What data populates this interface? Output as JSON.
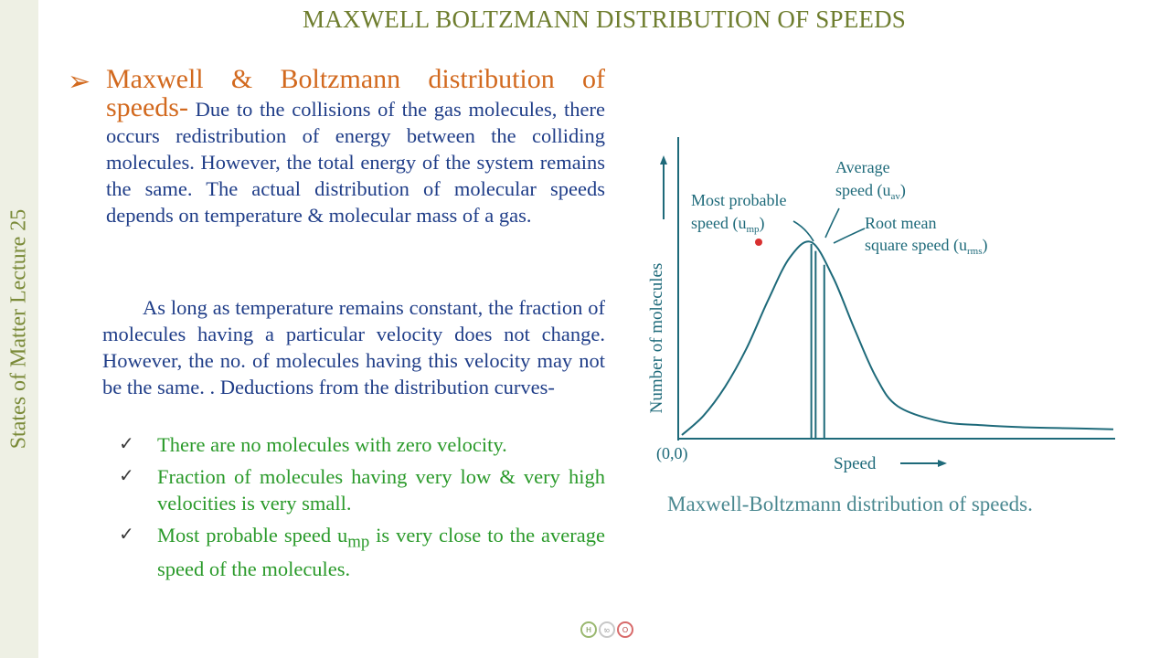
{
  "sidebar": {
    "label": "States of Matter Lecture 25"
  },
  "header": {
    "title": "MAXWELL BOLTZMANN DISTRIBUTION OF SPEEDS"
  },
  "content": {
    "bullet_symbol": "➢",
    "heading": "Maxwell & Boltzmann distribution of speeds-",
    "para1_text": " Due to the collisions of the gas molecules, there occurs redistribution of energy between the colliding molecules. However, the total energy of the system remains the same. The actual distribution of molecular speeds depends on temperature & molecular mass of a gas.",
    "para2_text": "As long as temperature remains constant, the fraction of molecules having a particular velocity does not change. However, the no. of molecules having this velocity may not be the same. . Deductions from the distribution curves-",
    "check_symbol": "✓",
    "deductions": [
      {
        "text": "There are no molecules with zero velocity."
      },
      {
        "text": "Fraction of molecules having very low & very high velocities is very small."
      },
      {
        "text_before": "Most probable speed u",
        "subscript": "mp",
        "text_after": " is very close to the average speed of the molecules."
      }
    ]
  },
  "chart_data": {
    "type": "line",
    "title": "",
    "xlabel": "Speed",
    "ylabel": "Number of molecules",
    "origin_label": "(0,0)",
    "series": [
      {
        "name": "distribution curve",
        "x": [
          0,
          0.05,
          0.1,
          0.15,
          0.2,
          0.25,
          0.3,
          0.35,
          0.4,
          0.45,
          0.5,
          0.6,
          0.7,
          0.8,
          0.9,
          1.0
        ],
        "y": [
          0,
          0.1,
          0.25,
          0.45,
          0.7,
          0.92,
          1.0,
          0.82,
          0.55,
          0.3,
          0.15,
          0.07,
          0.05,
          0.04,
          0.035,
          0.03
        ]
      }
    ],
    "markers": [
      {
        "name": "most-probable",
        "x": 0.3
      },
      {
        "name": "average",
        "x": 0.31
      },
      {
        "name": "root-mean-square",
        "x": 0.33
      }
    ],
    "annotations": {
      "mp": {
        "text": "Most probable speed (u",
        "sub": "mp",
        "close": ")"
      },
      "av_line1": "Average",
      "av": {
        "text": "speed (u",
        "sub": "av",
        "close": ")"
      },
      "rms_line1": "Root mean",
      "rms": {
        "text": "square speed (u",
        "sub": "rms",
        "close": ")"
      }
    },
    "caption": "Maxwell-Boltzmann distribution of speeds."
  },
  "footer": {
    "logo_left": "H",
    "logo_mid": "to",
    "logo_right": "O"
  },
  "colors": {
    "title": "#6e7d2e",
    "heading": "#d2691e",
    "body": "#1f3d88",
    "deduction": "#2a9a2a",
    "caption": "#4a8890",
    "chart_ink": "#1e6a7a"
  }
}
